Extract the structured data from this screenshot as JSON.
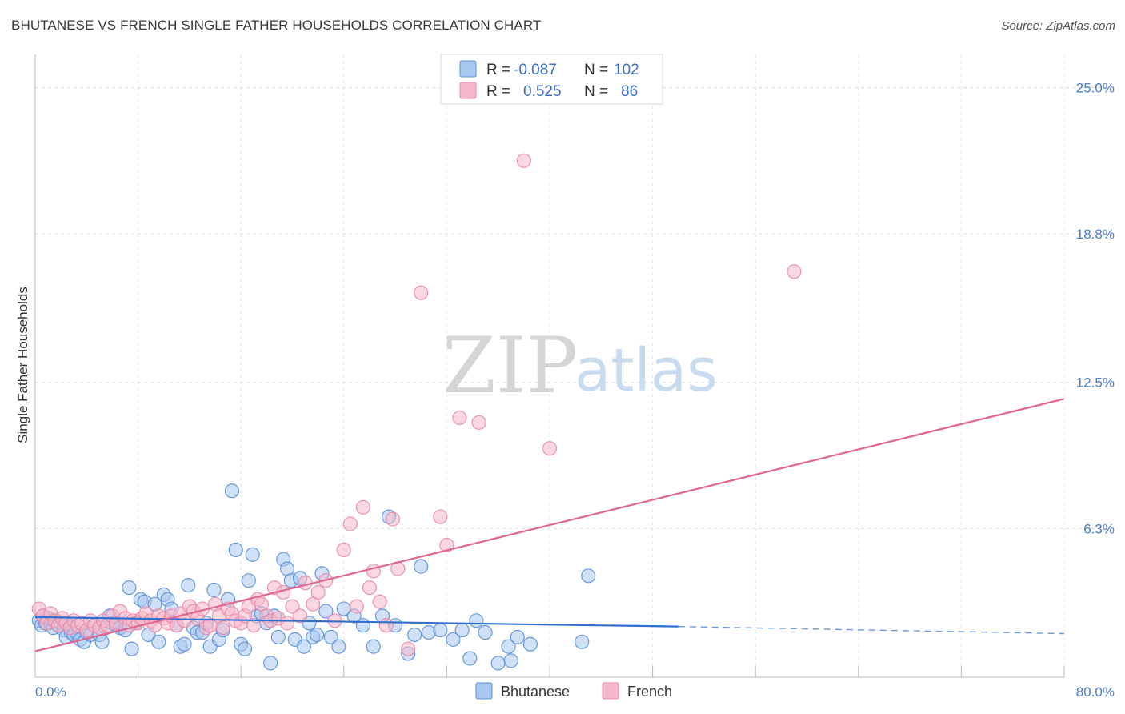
{
  "title": "BHUTANESE VS FRENCH SINGLE FATHER HOUSEHOLDS CORRELATION CHART",
  "source": "Source: ZipAtlas.com",
  "colors": {
    "bhutanese_fill": "#a9c8f0",
    "bhutanese_stroke": "#5b8fd6",
    "bhutanese_line": "#2f6fce",
    "french_fill": "#f6b8cb",
    "french_stroke": "#e88aa8",
    "french_line": "#e06690",
    "tick": "#4a7cc9",
    "grid": "#dddddd"
  },
  "legend": {
    "rows": [
      {
        "r_label": "R =",
        "r_value": "-0.087",
        "n_label": "N =",
        "n_value": "102"
      },
      {
        "r_label": "R =",
        "r_value": "0.525",
        "n_label": "N =",
        "n_value": "86"
      }
    ]
  },
  "watermark": {
    "zip": "ZIP",
    "atlas": "atlas"
  },
  "chart_data": {
    "type": "scatter",
    "title": "BHUTANESE VS FRENCH SINGLE FATHER HOUSEHOLDS CORRELATION CHART",
    "ylabel": "Single Father Households",
    "xlabel": "",
    "xlim": [
      0,
      80
    ],
    "ylim": [
      0,
      26
    ],
    "x_ticks": [
      "0.0%",
      "80.0%"
    ],
    "y_ticks": [
      {
        "value": 6.3,
        "label": "6.3%"
      },
      {
        "value": 12.5,
        "label": "12.5%"
      },
      {
        "value": 18.8,
        "label": "18.8%"
      },
      {
        "value": 25.0,
        "label": "25.0%"
      }
    ],
    "grid": true,
    "legend_position": "top-center",
    "series": [
      {
        "name": "Bhutanese",
        "r": -0.087,
        "n": 102,
        "trend": {
          "x0": 0,
          "y0": 2.55,
          "x1": 50,
          "y1": 2.15,
          "dash_to_x": 80,
          "dash_to_y": 1.85
        },
        "points": [
          [
            0.3,
            2.4
          ],
          [
            0.5,
            2.2
          ],
          [
            0.6,
            2.6
          ],
          [
            0.8,
            2.3
          ],
          [
            1.0,
            2.5
          ],
          [
            1.2,
            2.3
          ],
          [
            1.4,
            2.1
          ],
          [
            1.6,
            2.4
          ],
          [
            1.8,
            2.2
          ],
          [
            2.0,
            2.3
          ],
          [
            2.2,
            2.0
          ],
          [
            2.4,
            1.7
          ],
          [
            2.6,
            2.2
          ],
          [
            2.8,
            1.9
          ],
          [
            3.0,
            1.8
          ],
          [
            3.2,
            1.9
          ],
          [
            3.5,
            1.6
          ],
          [
            3.8,
            1.5
          ],
          [
            4.0,
            1.9
          ],
          [
            4.3,
            1.8
          ],
          [
            4.6,
            2.2
          ],
          [
            5.0,
            1.8
          ],
          [
            5.2,
            1.5
          ],
          [
            5.5,
            2.1
          ],
          [
            5.8,
            2.6
          ],
          [
            6.0,
            2.3
          ],
          [
            6.3,
            2.2
          ],
          [
            6.6,
            2.1
          ],
          [
            7.0,
            2.0
          ],
          [
            7.3,
            3.8
          ],
          [
            7.5,
            1.2
          ],
          [
            7.8,
            2.3
          ],
          [
            8.2,
            3.3
          ],
          [
            8.5,
            3.2
          ],
          [
            8.8,
            1.8
          ],
          [
            9.3,
            3.1
          ],
          [
            9.6,
            1.5
          ],
          [
            10.0,
            3.5
          ],
          [
            10.3,
            3.3
          ],
          [
            10.6,
            2.9
          ],
          [
            11.0,
            2.2
          ],
          [
            11.3,
            1.3
          ],
          [
            11.6,
            1.4
          ],
          [
            11.9,
            3.9
          ],
          [
            12.3,
            2.1
          ],
          [
            12.6,
            1.9
          ],
          [
            13.0,
            1.9
          ],
          [
            13.3,
            2.3
          ],
          [
            13.6,
            1.3
          ],
          [
            13.9,
            3.7
          ],
          [
            14.3,
            1.6
          ],
          [
            14.6,
            2.0
          ],
          [
            15.0,
            3.3
          ],
          [
            15.3,
            7.9
          ],
          [
            15.6,
            5.4
          ],
          [
            16.0,
            1.4
          ],
          [
            16.3,
            1.2
          ],
          [
            16.6,
            4.1
          ],
          [
            16.9,
            5.2
          ],
          [
            17.2,
            2.6
          ],
          [
            17.6,
            2.7
          ],
          [
            18.0,
            2.3
          ],
          [
            18.3,
            0.6
          ],
          [
            18.6,
            2.6
          ],
          [
            18.9,
            1.7
          ],
          [
            19.3,
            5.0
          ],
          [
            19.6,
            4.6
          ],
          [
            19.9,
            4.1
          ],
          [
            20.2,
            1.6
          ],
          [
            20.6,
            4.2
          ],
          [
            20.9,
            1.3
          ],
          [
            21.3,
            2.3
          ],
          [
            21.6,
            1.7
          ],
          [
            21.9,
            1.8
          ],
          [
            22.3,
            4.4
          ],
          [
            22.6,
            2.8
          ],
          [
            23.0,
            1.7
          ],
          [
            23.6,
            1.3
          ],
          [
            24.0,
            2.9
          ],
          [
            24.8,
            2.6
          ],
          [
            25.5,
            2.2
          ],
          [
            26.3,
            1.3
          ],
          [
            27.0,
            2.6
          ],
          [
            27.5,
            6.8
          ],
          [
            28.0,
            2.2
          ],
          [
            29.0,
            1.0
          ],
          [
            29.5,
            1.8
          ],
          [
            30.0,
            4.7
          ],
          [
            30.6,
            1.9
          ],
          [
            31.5,
            2.0
          ],
          [
            32.5,
            1.6
          ],
          [
            33.2,
            2.0
          ],
          [
            33.8,
            0.8
          ],
          [
            34.3,
            2.4
          ],
          [
            35.0,
            1.9
          ],
          [
            36.0,
            0.6
          ],
          [
            36.8,
            1.3
          ],
          [
            37.0,
            0.7
          ],
          [
            37.5,
            1.7
          ],
          [
            38.5,
            1.4
          ],
          [
            42.5,
            1.5
          ],
          [
            43.0,
            4.3
          ]
        ]
      },
      {
        "name": "French",
        "r": 0.525,
        "n": 86,
        "trend": {
          "x0": 0,
          "y0": 1.1,
          "x1": 80,
          "y1": 11.8
        },
        "points": [
          [
            0.3,
            2.9
          ],
          [
            0.6,
            2.6
          ],
          [
            0.9,
            2.3
          ],
          [
            1.2,
            2.7
          ],
          [
            1.5,
            2.4
          ],
          [
            1.8,
            2.2
          ],
          [
            2.1,
            2.5
          ],
          [
            2.4,
            2.3
          ],
          [
            2.7,
            2.1
          ],
          [
            3.0,
            2.4
          ],
          [
            3.3,
            2.2
          ],
          [
            3.6,
            2.3
          ],
          [
            4.0,
            2.0
          ],
          [
            4.3,
            2.4
          ],
          [
            4.6,
            2.2
          ],
          [
            5.0,
            2.1
          ],
          [
            5.3,
            2.4
          ],
          [
            5.6,
            2.2
          ],
          [
            6.0,
            2.6
          ],
          [
            6.3,
            2.3
          ],
          [
            6.6,
            2.8
          ],
          [
            7.0,
            2.5
          ],
          [
            7.3,
            2.2
          ],
          [
            7.6,
            2.4
          ],
          [
            8.0,
            2.3
          ],
          [
            8.3,
            2.5
          ],
          [
            8.6,
            2.7
          ],
          [
            9.0,
            2.4
          ],
          [
            9.3,
            2.2
          ],
          [
            9.6,
            2.6
          ],
          [
            10.0,
            2.5
          ],
          [
            10.3,
            2.3
          ],
          [
            10.6,
            2.6
          ],
          [
            11.0,
            2.2
          ],
          [
            11.3,
            2.7
          ],
          [
            11.6,
            2.4
          ],
          [
            12.0,
            3.0
          ],
          [
            12.3,
            2.8
          ],
          [
            12.6,
            2.5
          ],
          [
            13.0,
            2.9
          ],
          [
            13.3,
            2.1
          ],
          [
            13.6,
            2.2
          ],
          [
            14.0,
            3.1
          ],
          [
            14.3,
            2.6
          ],
          [
            14.6,
            2.1
          ],
          [
            15.0,
            2.9
          ],
          [
            15.3,
            2.7
          ],
          [
            15.6,
            2.4
          ],
          [
            16.0,
            2.3
          ],
          [
            16.3,
            2.6
          ],
          [
            16.6,
            3.0
          ],
          [
            17.0,
            2.2
          ],
          [
            17.3,
            3.3
          ],
          [
            17.6,
            3.1
          ],
          [
            18.0,
            2.6
          ],
          [
            18.3,
            2.4
          ],
          [
            18.6,
            3.8
          ],
          [
            18.9,
            2.5
          ],
          [
            19.3,
            3.6
          ],
          [
            19.6,
            2.3
          ],
          [
            20.0,
            3.0
          ],
          [
            20.6,
            2.6
          ],
          [
            21.0,
            4.0
          ],
          [
            21.6,
            3.1
          ],
          [
            22.0,
            3.6
          ],
          [
            22.6,
            4.1
          ],
          [
            23.3,
            2.4
          ],
          [
            24.0,
            5.4
          ],
          [
            24.5,
            6.5
          ],
          [
            25.0,
            3.0
          ],
          [
            25.5,
            7.2
          ],
          [
            26.0,
            3.8
          ],
          [
            26.3,
            4.5
          ],
          [
            26.8,
            3.2
          ],
          [
            27.3,
            2.2
          ],
          [
            27.8,
            6.7
          ],
          [
            28.2,
            4.6
          ],
          [
            29.0,
            1.2
          ],
          [
            30.0,
            16.3
          ],
          [
            31.5,
            6.8
          ],
          [
            32.0,
            5.6
          ],
          [
            33.0,
            11.0
          ],
          [
            34.5,
            10.8
          ],
          [
            38.0,
            21.9
          ],
          [
            40.0,
            9.7
          ],
          [
            59.0,
            17.2
          ]
        ]
      }
    ]
  }
}
